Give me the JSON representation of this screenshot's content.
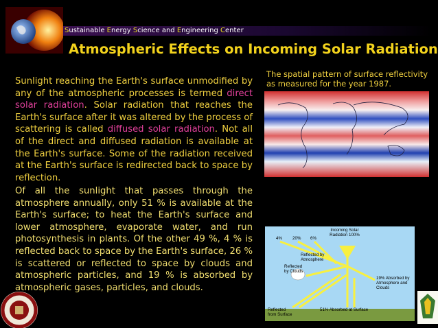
{
  "header": {
    "banner": [
      {
        "text": "S",
        "highlight": true
      },
      {
        "text": "ustainable ",
        "highlight": false
      },
      {
        "text": "E",
        "highlight": true
      },
      {
        "text": "nergy ",
        "highlight": false
      },
      {
        "text": "S",
        "highlight": true
      },
      {
        "text": "cience and ",
        "highlight": false
      },
      {
        "text": "E",
        "highlight": true
      },
      {
        "text": "ngineering ",
        "highlight": false
      },
      {
        "text": "C",
        "highlight": true
      },
      {
        "text": "enter",
        "highlight": false
      }
    ],
    "title": "Atmospheric Effects on Incoming Solar Radiation"
  },
  "body": {
    "paragraph1": [
      {
        "text": "Sunlight reaching the Earth's surface unmodified by any of the atmospheric processes is termed ",
        "highlight": false
      },
      {
        "text": "direct solar radiation",
        "highlight": true
      },
      {
        "text": ". Solar radiation that reaches the Earth's surface after it was altered by the process of scattering is called ",
        "highlight": false
      },
      {
        "text": "diffused solar radiation",
        "highlight": true
      },
      {
        "text": ". Not all of the direct and diffused radiation is available at the Earth's surface. Some of the radiation received at the Earth's surface is redirected back to space by reflection.",
        "highlight": false
      }
    ],
    "paragraph2": "Of all the sunlight that passes through the atmosphere annually, only 51 % is available at the Earth's surface; to heat the Earth's surface and lower atmosphere, evaporate water, and run photosynthesis in plants. Of the other 49 %, 4 % is reflected back to space by the Earth's surface, 26 % is scattered or reflected to space by clouds and atmospheric particles, and 19 % is absorbed by atmospheric gases, particles, and clouds."
  },
  "figure": {
    "caption": "The spatial pattern of surface reflectivity as measured for the year 1987."
  },
  "diagram": {
    "incoming": "Incoming Solar Radiation 100%",
    "p4": "4%",
    "p20": "20%",
    "p6": "6%",
    "atmosphere": "Reflected by Atmosphere",
    "clouds": "Reflected by Clouds",
    "absorbed_atm": "19% Absorbed by Atmosphere and Clouds",
    "surface": "Reflected from Surface",
    "absorbed_surface": "51% Absorbed at Surface"
  }
}
